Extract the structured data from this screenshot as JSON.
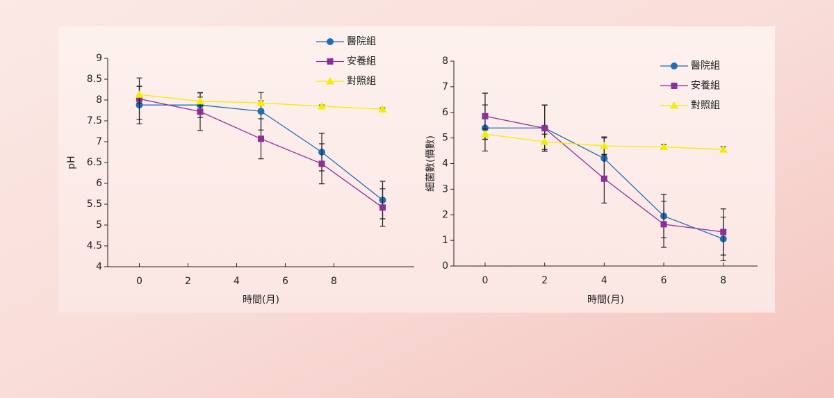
{
  "chart_data": [
    {
      "type": "line",
      "y_label": "pH",
      "x_label": "時間(月)",
      "xlim": [
        -1.3,
        11.3
      ],
      "xticks": [
        0,
        2,
        4,
        6,
        8
      ],
      "ylim": [
        4,
        9
      ],
      "yticks": [
        4,
        4.5,
        5,
        5.5,
        6,
        6.5,
        7,
        7.5,
        8,
        8.5,
        9
      ],
      "legend": "upper-right",
      "x": [
        0,
        2.5,
        5,
        7.5,
        10
      ],
      "series": [
        {
          "name": "醫院組",
          "color": "#1f6db5",
          "marker": "circle",
          "values": [
            7.88,
            7.88,
            7.73,
            6.75,
            5.6
          ],
          "errors": [
            0.45,
            0.3,
            0.45,
            0.45,
            0.45
          ]
        },
        {
          "name": "安養組",
          "color": "#8e2f97",
          "marker": "square",
          "values": [
            8.03,
            7.72,
            7.07,
            6.47,
            5.42
          ],
          "errors": [
            0.5,
            0.45,
            0.48,
            0.48,
            0.45
          ]
        },
        {
          "name": "對照組",
          "color": "#f2ee00",
          "marker": "triangle",
          "values": [
            8.13,
            7.97,
            7.93,
            7.85,
            7.78
          ],
          "errors": [
            0.2,
            0.1,
            0.05,
            0.03,
            0.03
          ]
        }
      ]
    },
    {
      "type": "line",
      "y_label": "細菌數(價數)",
      "x_label": "時間(月)",
      "xlim": [
        -1.05,
        9.15
      ],
      "xticks": [
        0,
        2,
        4,
        6,
        8
      ],
      "ylim": [
        0,
        8
      ],
      "yticks": [
        0,
        1,
        2,
        3,
        4,
        5,
        6,
        7,
        8
      ],
      "legend": "upper-right",
      "x": [
        0,
        2,
        4,
        6,
        8
      ],
      "series": [
        {
          "name": "醫院組",
          "color": "#1f6db5",
          "marker": "circle",
          "values": [
            5.39,
            5.39,
            4.2,
            1.95,
            1.06
          ],
          "errors": [
            0.9,
            0.9,
            0.8,
            0.85,
            0.85
          ]
        },
        {
          "name": "安養組",
          "color": "#8e2f97",
          "marker": "square",
          "values": [
            5.85,
            5.38,
            3.41,
            1.63,
            1.33
          ],
          "errors": [
            0.9,
            0.9,
            0.95,
            0.9,
            0.9
          ]
        },
        {
          "name": "對照組",
          "color": "#f2ee00",
          "marker": "triangle",
          "values": [
            5.15,
            4.85,
            4.69,
            4.65,
            4.55
          ],
          "errors": [
            0.2,
            0.3,
            0.35,
            0.1,
            0.1
          ]
        }
      ]
    }
  ]
}
